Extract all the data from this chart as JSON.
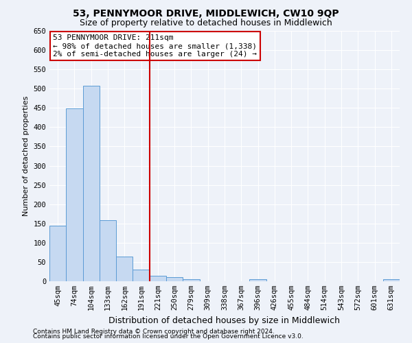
{
  "title": "53, PENNYMOOR DRIVE, MIDDLEWICH, CW10 9QP",
  "subtitle": "Size of property relative to detached houses in Middlewich",
  "xlabel": "Distribution of detached houses by size in Middlewich",
  "ylabel": "Number of detached properties",
  "footnote1": "Contains HM Land Registry data © Crown copyright and database right 2024.",
  "footnote2": "Contains public sector information licensed under the Open Government Licence v3.0.",
  "categories": [
    "45sqm",
    "74sqm",
    "104sqm",
    "133sqm",
    "162sqm",
    "191sqm",
    "221sqm",
    "250sqm",
    "279sqm",
    "309sqm",
    "338sqm",
    "367sqm",
    "396sqm",
    "426sqm",
    "455sqm",
    "484sqm",
    "514sqm",
    "543sqm",
    "572sqm",
    "601sqm",
    "631sqm"
  ],
  "values": [
    145,
    448,
    507,
    158,
    65,
    30,
    14,
    10,
    6,
    0,
    0,
    0,
    5,
    0,
    0,
    0,
    0,
    0,
    0,
    0,
    5
  ],
  "bar_color": "#c6d9f1",
  "bar_edge_color": "#5b9bd5",
  "ylim": [
    0,
    650
  ],
  "yticks": [
    0,
    50,
    100,
    150,
    200,
    250,
    300,
    350,
    400,
    450,
    500,
    550,
    600,
    650
  ],
  "vline_x": 6.0,
  "vline_color": "#cc0000",
  "annotation_text": "53 PENNYMOOR DRIVE: 211sqm\n← 98% of detached houses are smaller (1,338)\n2% of semi-detached houses are larger (24) →",
  "annotation_box_color": "#ffffff",
  "annotation_box_edgecolor": "#cc0000",
  "background_color": "#eef2f9",
  "grid_color": "#ffffff",
  "title_fontsize": 10,
  "subtitle_fontsize": 9,
  "annotation_fontsize": 8,
  "ylabel_fontsize": 8,
  "xlabel_fontsize": 9,
  "tick_fontsize": 7.5,
  "footnote_fontsize": 6.5
}
